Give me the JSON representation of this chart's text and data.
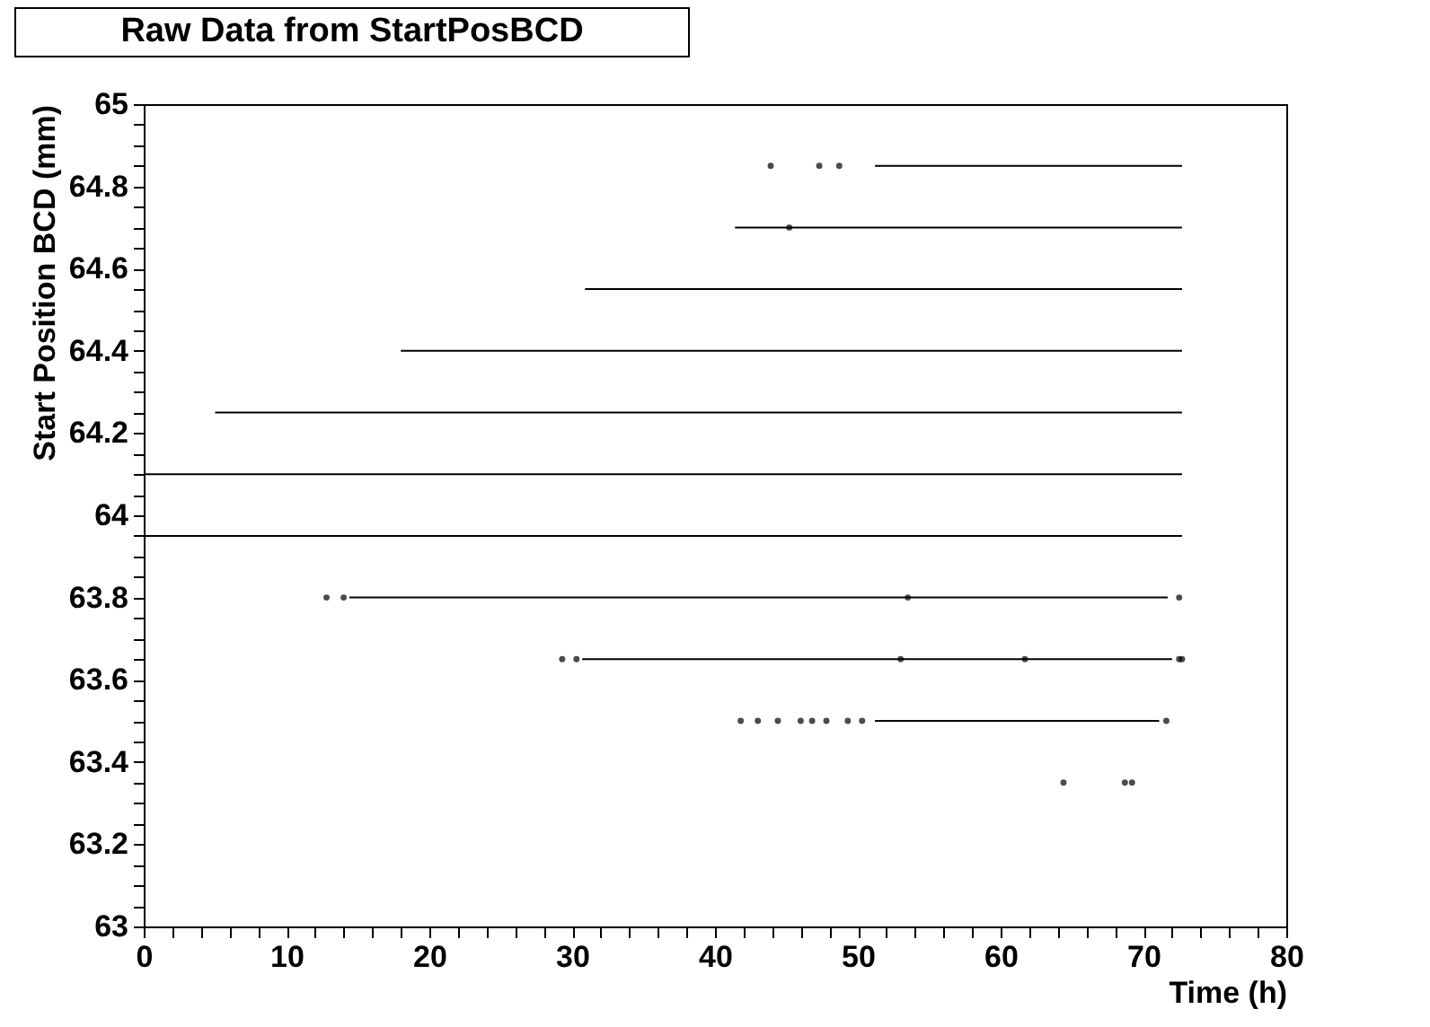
{
  "chart_data": {
    "type": "line",
    "title": "Raw Data from StartPosBCD",
    "xlabel": "Time (h)",
    "ylabel": "Start Position BCD (mm)",
    "xlim": [
      0,
      80
    ],
    "ylim": [
      63,
      65
    ],
    "xticks": [
      0,
      {
        "value": 2,
        "label": null
      },
      {
        "value": 4,
        "label": null
      },
      {
        "value": 6,
        "label": null
      },
      {
        "value": 8,
        "label": null
      },
      10,
      {
        "value": 12,
        "label": null
      },
      {
        "value": 14,
        "label": null
      },
      {
        "value": 16,
        "label": null
      },
      {
        "value": 18,
        "label": null
      },
      20,
      {
        "value": 22,
        "label": null
      },
      {
        "value": 24,
        "label": null
      },
      {
        "value": 26,
        "label": null
      },
      {
        "value": 28,
        "label": null
      },
      30,
      {
        "value": 32,
        "label": null
      },
      {
        "value": 34,
        "label": null
      },
      {
        "value": 36,
        "label": null
      },
      {
        "value": 38,
        "label": null
      },
      40,
      {
        "value": 42,
        "label": null
      },
      {
        "value": 44,
        "label": null
      },
      {
        "value": 46,
        "label": null
      },
      {
        "value": 48,
        "label": null
      },
      50,
      {
        "value": 52,
        "label": null
      },
      {
        "value": 54,
        "label": null
      },
      {
        "value": 56,
        "label": null
      },
      {
        "value": 58,
        "label": null
      },
      60,
      {
        "value": 62,
        "label": null
      },
      {
        "value": 64,
        "label": null
      },
      {
        "value": 66,
        "label": null
      },
      {
        "value": 68,
        "label": null
      },
      70,
      {
        "value": 72,
        "label": null
      },
      {
        "value": 74,
        "label": null
      },
      {
        "value": 76,
        "label": null
      },
      {
        "value": 78,
        "label": null
      },
      80
    ],
    "yticks": [
      63,
      {
        "value": 63.05,
        "label": null
      },
      {
        "value": 63.1,
        "label": null
      },
      {
        "value": 63.15,
        "label": null
      },
      63.2,
      {
        "value": 63.25,
        "label": null
      },
      {
        "value": 63.3,
        "label": null
      },
      {
        "value": 63.35,
        "label": null
      },
      63.4,
      {
        "value": 63.45,
        "label": null
      },
      {
        "value": 63.5,
        "label": null
      },
      {
        "value": 63.55,
        "label": null
      },
      63.6,
      {
        "value": 63.65,
        "label": null
      },
      {
        "value": 63.7,
        "label": null
      },
      {
        "value": 63.75,
        "label": null
      },
      63.8,
      {
        "value": 63.85,
        "label": null
      },
      {
        "value": 63.9,
        "label": null
      },
      {
        "value": 63.95,
        "label": null
      },
      64,
      {
        "value": 64.05,
        "label": null
      },
      {
        "value": 64.1,
        "label": null
      },
      {
        "value": 64.15,
        "label": null
      },
      64.2,
      {
        "value": 64.25,
        "label": null
      },
      {
        "value": 64.3,
        "label": null
      },
      {
        "value": 64.35,
        "label": null
      },
      64.4,
      {
        "value": 64.45,
        "label": null
      },
      {
        "value": 64.5,
        "label": null
      },
      {
        "value": 64.55,
        "label": null
      },
      64.6,
      {
        "value": 64.65,
        "label": null
      },
      {
        "value": 64.7,
        "label": null
      },
      {
        "value": 64.75,
        "label": null
      },
      64.8,
      {
        "value": 64.85,
        "label": null
      },
      {
        "value": 64.9,
        "label": null
      },
      {
        "value": 64.95,
        "label": null
      },
      65
    ],
    "grid": false,
    "series": [
      {
        "color": "#000000",
        "x": [
          51.2,
          53.1,
          null,
          53.5,
          71.3,
          null,
          72.1,
          72.7
        ],
        "values": [
          64.85,
          64.85,
          null,
          64.85,
          64.85,
          null,
          64.85,
          64.85
        ]
      },
      {
        "color": "#000000",
        "x": [
          41.4,
          42.0,
          null,
          42.6,
          43.0,
          null,
          43.4,
          44.9,
          null,
          45.6,
          71.5,
          null,
          71.6,
          72.7
        ],
        "values": [
          64.7,
          64.7,
          null,
          64.7,
          64.7,
          null,
          64.7,
          64.7,
          null,
          64.7,
          64.7,
          null,
          64.7,
          64.7
        ]
      },
      {
        "color": "#000000",
        "x": [
          30.9,
          31.8,
          null,
          32.3,
          72.7
        ],
        "values": [
          64.55,
          64.55,
          null,
          64.55,
          64.55
        ]
      },
      {
        "color": "#000000",
        "x": [
          18.0,
          18.6,
          null,
          19.0,
          72.7
        ],
        "values": [
          64.4,
          64.4,
          null,
          64.4,
          64.4
        ]
      },
      {
        "color": "#000000",
        "x": [
          5.0,
          72.7
        ],
        "values": [
          64.25,
          64.25
        ]
      },
      {
        "color": "#000000",
        "x": [
          0,
          56.8,
          null,
          57.0,
          72.7
        ],
        "values": [
          64.1,
          64.1,
          null,
          64.1,
          64.1
        ]
      },
      {
        "color": "#000000",
        "x": [
          0,
          72.7
        ],
        "values": [
          63.95,
          63.95
        ]
      },
      {
        "color": "#000000",
        "x": [
          14.4,
          53.1,
          null,
          53.7,
          55.0,
          null,
          55.3,
          71.7
        ],
        "values": [
          63.8,
          63.8,
          null,
          63.8,
          63.8,
          null,
          63.8,
          63.8
        ]
      },
      {
        "color": "#000000",
        "x": [
          30.7,
          33.3,
          null,
          33.7,
          35.8,
          null,
          36.5,
          45.3,
          null,
          45.8,
          52.5,
          null,
          54.1,
          54.5,
          null,
          54.7,
          57.9,
          null,
          58.2,
          60.0,
          null,
          60.4,
          61.3,
          null,
          62.0,
          71.1,
          null,
          71.6,
          72.0
        ],
        "values": [
          63.65,
          63.65,
          null,
          63.65,
          63.65,
          null,
          63.65,
          63.65,
          null,
          63.65,
          63.65,
          null,
          63.65,
          63.65,
          null,
          63.65,
          63.65,
          null,
          63.65,
          63.65,
          null,
          63.65,
          63.65,
          null,
          63.65,
          63.65,
          null,
          63.65,
          63.65
        ]
      },
      {
        "color": "#000000",
        "x": [
          51.2,
          52.5,
          null,
          54.5,
          55.7,
          null,
          57.9,
          60.8,
          null,
          62.1,
          63.1,
          null,
          63.4,
          71.1
        ],
        "values": [
          63.5,
          63.5,
          null,
          63.5,
          63.5,
          null,
          63.5,
          63.5,
          null,
          63.5,
          63.5,
          null,
          63.5,
          63.5
        ]
      },
      {
        "type": "scatter",
        "marker": "circle",
        "color": "#000000",
        "x": [
          43.9,
          47.3,
          48.7,
          45.2,
          12.8,
          14.0,
          53.5,
          72.5,
          29.3,
          30.3,
          53.0,
          61.7,
          72.5,
          72.7,
          41.8,
          43.0,
          44.4,
          46.0,
          46.8,
          47.8,
          49.3,
          50.3,
          71.6,
          64.4,
          68.7,
          69.2
        ],
        "values": [
          64.85,
          64.85,
          64.85,
          64.7,
          63.8,
          63.8,
          63.8,
          63.8,
          63.65,
          63.65,
          63.65,
          63.65,
          63.65,
          63.65,
          63.5,
          63.5,
          63.5,
          63.5,
          63.5,
          63.5,
          63.5,
          63.5,
          63.5,
          63.35,
          63.35,
          63.35
        ]
      }
    ]
  }
}
